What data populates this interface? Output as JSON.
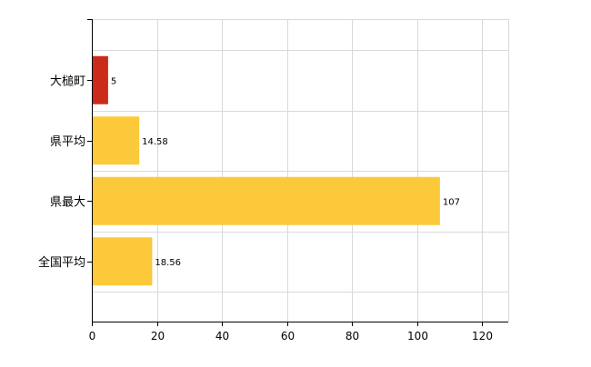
{
  "chart_data": {
    "type": "bar",
    "orientation": "horizontal",
    "categories": [
      "大槌町",
      "県平均",
      "県最大",
      "全国平均"
    ],
    "values": [
      5,
      14.58,
      107,
      18.56
    ],
    "data_labels": [
      "5",
      "14.58",
      "107",
      "18.56"
    ],
    "bar_colors": [
      "#cc2a1a",
      "#fcc93a",
      "#fcc93a",
      "#fcc93a"
    ],
    "title": "",
    "xlabel": "",
    "ylabel": "",
    "xlim": [
      0,
      128
    ],
    "xticks": [
      0,
      20,
      40,
      60,
      80,
      100,
      120
    ],
    "grid": true,
    "legend": "none"
  },
  "colors": {
    "highlight": "#cc2a1a",
    "bar": "#fcc93a",
    "grid": "#d9d9d9",
    "axis": "#000000"
  }
}
